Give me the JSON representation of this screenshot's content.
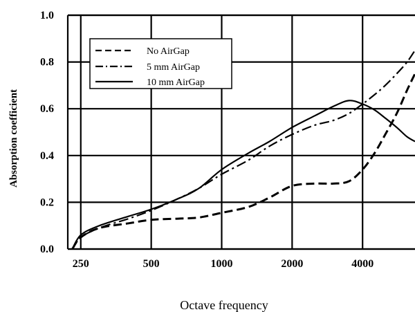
{
  "chart_data": {
    "type": "line",
    "title": "",
    "xlabel": "Octave frequency",
    "ylabel": "Absorption coefficient",
    "x_scale": "log",
    "xlim": [
      220,
      6700
    ],
    "ylim": [
      0,
      1.0
    ],
    "x_ticks": [
      250,
      500,
      1000,
      2000,
      4000
    ],
    "x_tick_labels": [
      "250",
      "500",
      "1000",
      "2000",
      "4000"
    ],
    "y_ticks": [
      0,
      0.2,
      0.4,
      0.6,
      0.8,
      1.0
    ],
    "y_tick_labels": [
      "0.0",
      "0.2",
      "0.4",
      "0.6",
      "0.8",
      "1.0"
    ],
    "grid": true,
    "legend_position": "top-left",
    "series": [
      {
        "name": "No AirGap",
        "style": "dashed",
        "x": [
          230,
          250,
          300,
          400,
          500,
          650,
          800,
          1000,
          1300,
          1600,
          2000,
          2500,
          3000,
          3500,
          4000,
          4500,
          5000,
          5600,
          6200,
          6700
        ],
        "y": [
          0.0,
          0.05,
          0.09,
          0.11,
          0.125,
          0.13,
          0.135,
          0.155,
          0.18,
          0.22,
          0.27,
          0.28,
          0.28,
          0.29,
          0.34,
          0.41,
          0.49,
          0.58,
          0.68,
          0.75
        ]
      },
      {
        "name": "5 mm AirGap",
        "style": "dash-dot",
        "x": [
          230,
          250,
          300,
          400,
          500,
          650,
          800,
          1000,
          1300,
          1600,
          2000,
          2500,
          3000,
          3500,
          4000,
          4500,
          5000,
          5600,
          6200,
          6700
        ],
        "y": [
          0.0,
          0.05,
          0.09,
          0.13,
          0.165,
          0.215,
          0.26,
          0.32,
          0.38,
          0.44,
          0.49,
          0.53,
          0.55,
          0.58,
          0.62,
          0.66,
          0.7,
          0.75,
          0.8,
          0.85
        ]
      },
      {
        "name": "10 mm AirGap",
        "style": "solid",
        "x": [
          230,
          250,
          300,
          400,
          500,
          650,
          800,
          1000,
          1300,
          1600,
          2000,
          2500,
          3000,
          3500,
          4000,
          4500,
          5000,
          5600,
          6200,
          6700
        ],
        "y": [
          0.0,
          0.06,
          0.1,
          0.14,
          0.17,
          0.215,
          0.26,
          0.34,
          0.41,
          0.46,
          0.52,
          0.57,
          0.61,
          0.635,
          0.62,
          0.595,
          0.56,
          0.52,
          0.48,
          0.46
        ]
      }
    ]
  }
}
